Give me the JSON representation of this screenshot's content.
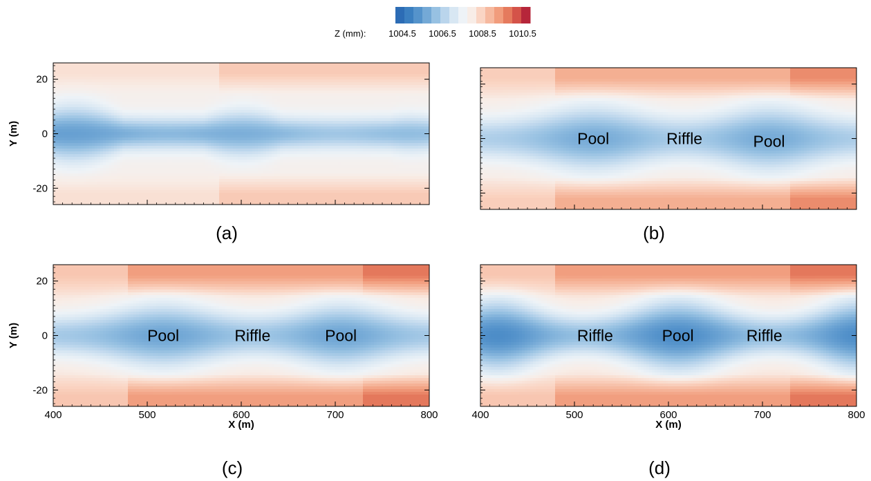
{
  "colorbar": {
    "label": "Z (mm):",
    "tick_labels": [
      "1004.5",
      "1006.5",
      "1008.5",
      "1010.5"
    ],
    "colors": [
      "#2c6cb5",
      "#3b7fc0",
      "#5593cb",
      "#74a9d6",
      "#97c1e2",
      "#bad5ec",
      "#d8e7f3",
      "#eef3f7",
      "#f8ede7",
      "#fad5c4",
      "#f6b99f",
      "#f19c7c",
      "#e57a5d",
      "#d45349",
      "#b6263a"
    ]
  },
  "chart_data": [
    {
      "type": "heatmap",
      "panel_label": "(a)",
      "xlim": [
        400,
        800
      ],
      "ylim": [
        -26,
        26
      ],
      "x_ticks": [
        400,
        500,
        600,
        700,
        800
      ],
      "y_ticks": [
        -20,
        0,
        20
      ],
      "y_tick_labels": [
        "-20",
        "0",
        "20"
      ],
      "ylabel": "Y (m)",
      "bank_edges": [
        576
      ],
      "annotations": []
    },
    {
      "type": "heatmap",
      "panel_label": "(b)",
      "xlim": [
        400,
        800
      ],
      "ylim": [
        -26,
        26
      ],
      "x_ticks": [
        400,
        500,
        600,
        700,
        800
      ],
      "y_ticks": [
        -20,
        0,
        20
      ],
      "bank_edges": [
        480,
        730
      ],
      "annotations": [
        {
          "text": "Pool",
          "x": 520,
          "y": 0
        },
        {
          "text": "Riffle",
          "x": 617,
          "y": 0
        },
        {
          "text": "Pool",
          "x": 707,
          "y": -1
        }
      ]
    },
    {
      "type": "heatmap",
      "panel_label": "(c)",
      "xlim": [
        400,
        800
      ],
      "ylim": [
        -26,
        26
      ],
      "x_ticks": [
        400,
        500,
        600,
        700,
        800
      ],
      "x_tick_labels": [
        "400",
        "500",
        "600",
        "700",
        "800"
      ],
      "y_ticks": [
        -20,
        0,
        20
      ],
      "y_tick_labels": [
        "-20",
        "0",
        "20"
      ],
      "xlabel": "X (m)",
      "ylabel": "Y (m)",
      "bank_edges": [
        480,
        730
      ],
      "annotations": [
        {
          "text": "Pool",
          "x": 517,
          "y": 0
        },
        {
          "text": "Riffle",
          "x": 612,
          "y": 0
        },
        {
          "text": "Pool",
          "x": 706,
          "y": 0
        }
      ]
    },
    {
      "type": "heatmap",
      "panel_label": "(d)",
      "xlim": [
        400,
        800
      ],
      "ylim": [
        -26,
        26
      ],
      "x_ticks": [
        400,
        500,
        600,
        700,
        800
      ],
      "x_tick_labels": [
        "400",
        "500",
        "600",
        "700",
        "800"
      ],
      "y_ticks": [
        -20,
        0,
        20
      ],
      "xlabel": "X (m)",
      "bank_edges": [
        480,
        730
      ],
      "annotations": [
        {
          "text": "Riffle",
          "x": 522,
          "y": 0
        },
        {
          "text": "Pool",
          "x": 610,
          "y": 0
        },
        {
          "text": "Riffle",
          "x": 702,
          "y": 0
        }
      ]
    }
  ]
}
